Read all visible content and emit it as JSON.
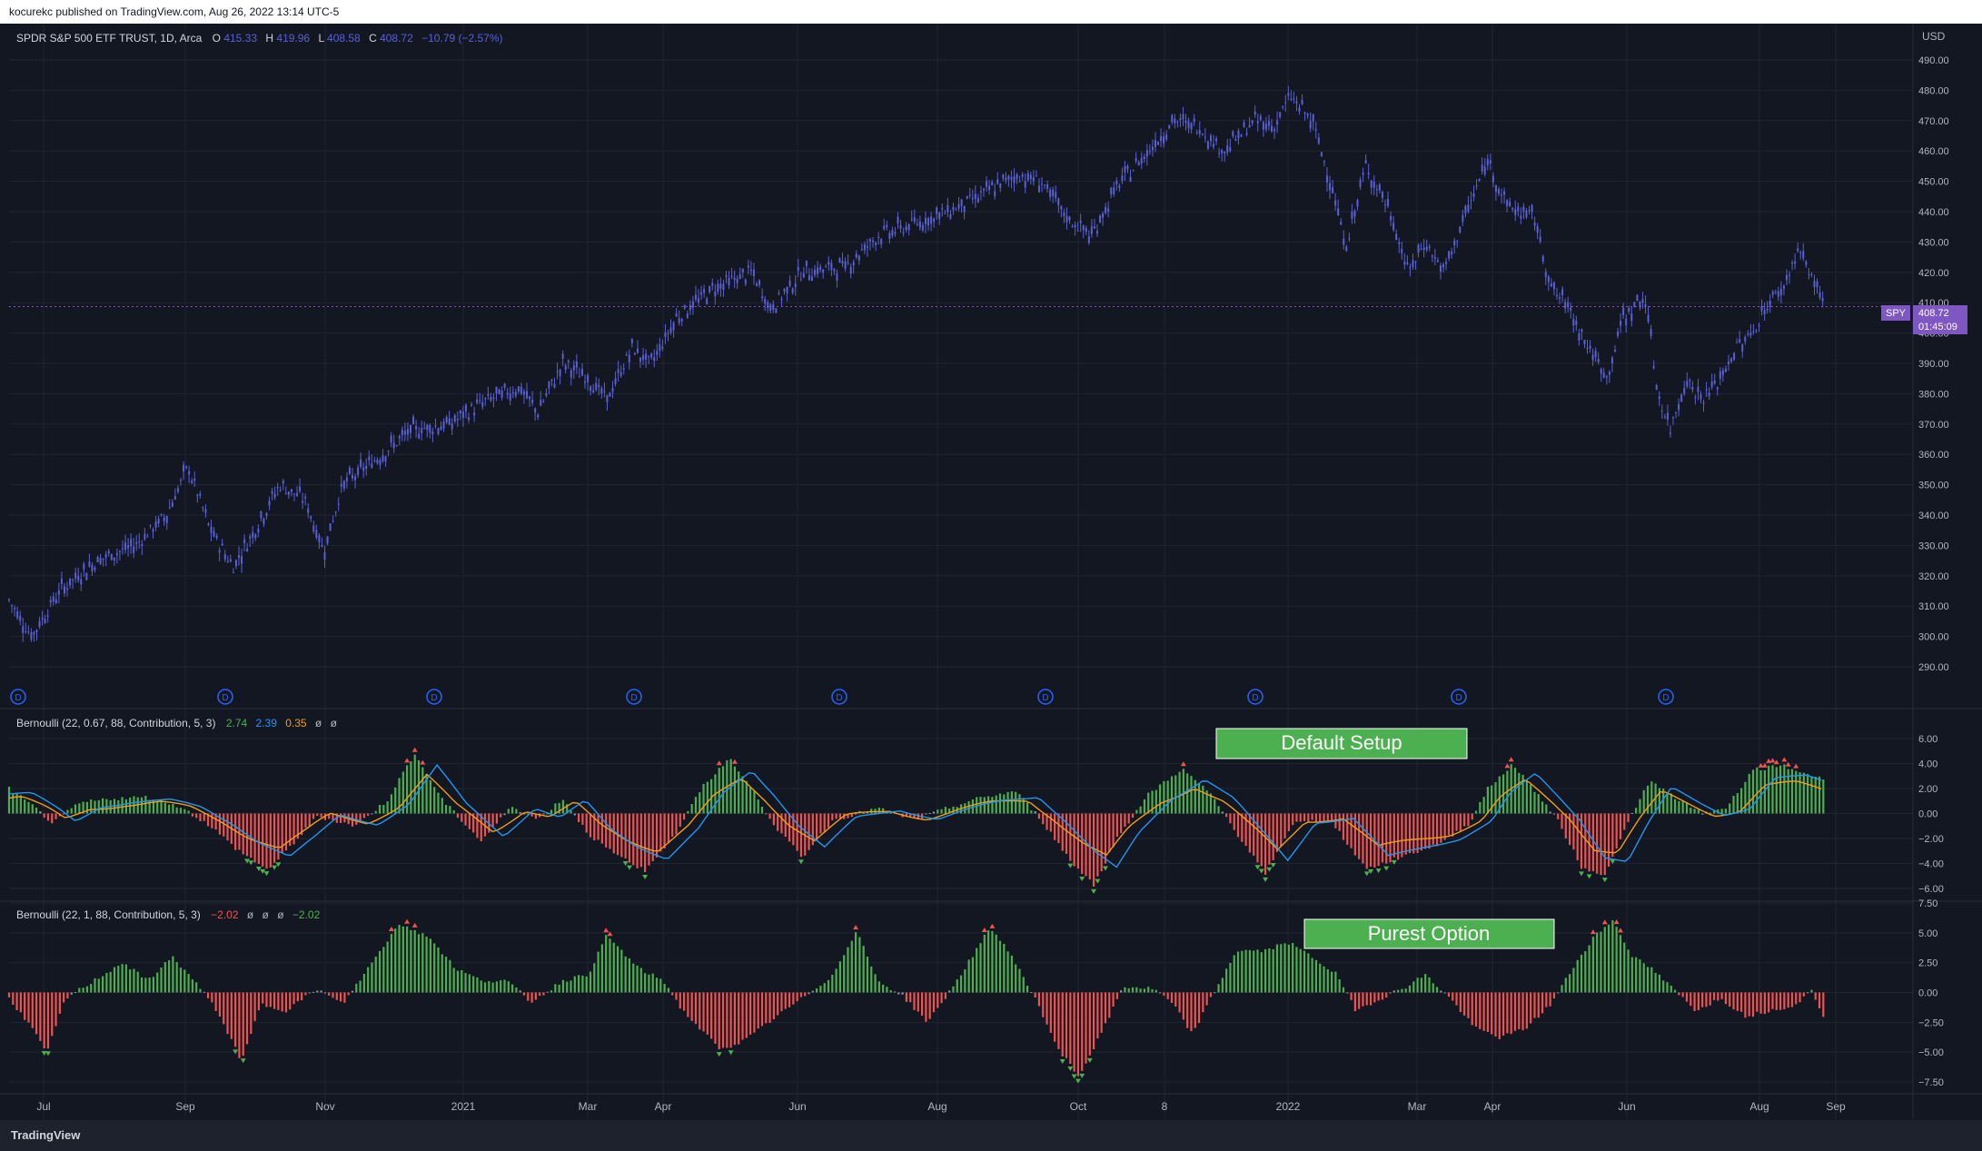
{
  "header": {
    "published_text": "kocurekc published on TradingView.com, Aug 26, 2022 13:14 UTC-5"
  },
  "footer": {
    "brand": "TradingView"
  },
  "colors": {
    "bg": "#131722",
    "candle": "#5b5fd6",
    "green": "#4caf50",
    "red": "#ef5350",
    "orange": "#f39c12",
    "blue": "#2196f3",
    "label_bg": "#4caf50",
    "price_tag": "#7e57c2"
  },
  "main_pane": {
    "symbol_info": "SPDR S&P 500 ETF TRUST, 1D, Arca",
    "ohlc": [
      {
        "k": "O",
        "v": "415.33"
      },
      {
        "k": "H",
        "v": "419.96"
      },
      {
        "k": "L",
        "v": "408.58"
      },
      {
        "k": "C",
        "v": "408.72"
      }
    ],
    "change": "−10.79 (−2.57%)",
    "currency": "USD",
    "last_price": "408.72",
    "countdown": "01:45:09",
    "symbol_tag": "SPY",
    "dividend_marker": "D"
  },
  "pane1": {
    "title": "Bernoulli (22, 0.67, 88, Contribution, 5, 3)",
    "values": [
      {
        "v": "2.74",
        "color": "#4caf50"
      },
      {
        "v": "2.39",
        "color": "#2196f3"
      },
      {
        "v": "0.35",
        "color": "#f39c12"
      },
      {
        "v": "ø",
        "color": "#b2b5be"
      },
      {
        "v": "ø",
        "color": "#b2b5be"
      }
    ],
    "annotation": "Default Setup"
  },
  "pane2": {
    "title": "Bernoulli (22, 1, 88, Contribution, 5, 3)",
    "values": [
      {
        "v": "−2.02",
        "color": "#ef5350"
      },
      {
        "v": "ø",
        "color": "#b2b5be"
      },
      {
        "v": "ø",
        "color": "#b2b5be"
      },
      {
        "v": "ø",
        "color": "#b2b5be"
      },
      {
        "v": "−2.02",
        "color": "#4caf50"
      }
    ],
    "annotation": "Purest Option"
  },
  "chart_data": [
    {
      "type": "candlestick",
      "title": "SPDR S&P 500 ETF TRUST, 1D, Arca",
      "ylim": [
        285,
        495
      ],
      "y_ticks": [
        "490.00",
        "480.00",
        "470.00",
        "460.00",
        "450.00",
        "440.00",
        "430.00",
        "420.00",
        "410.00",
        "400.00",
        "390.00",
        "380.00",
        "370.00",
        "360.00",
        "350.00",
        "340.00",
        "330.00",
        "320.00",
        "310.00",
        "300.00",
        "290.00"
      ],
      "x_ticks": [
        "Jul",
        "Sep",
        "Nov",
        "2021",
        "Mar",
        "Apr",
        "Jun",
        "Aug",
        "Oct",
        "8",
        "2022",
        "Mar",
        "Apr",
        "Jun",
        "Aug",
        "Sep"
      ],
      "close_path": [
        {
          "t": 0,
          "y": 312
        },
        {
          "t": 18,
          "y": 300
        },
        {
          "t": 40,
          "y": 315
        },
        {
          "t": 70,
          "y": 325
        },
        {
          "t": 100,
          "y": 330
        },
        {
          "t": 125,
          "y": 340
        },
        {
          "t": 142,
          "y": 356
        },
        {
          "t": 160,
          "y": 335
        },
        {
          "t": 178,
          "y": 323
        },
        {
          "t": 195,
          "y": 335
        },
        {
          "t": 215,
          "y": 350
        },
        {
          "t": 235,
          "y": 345
        },
        {
          "t": 250,
          "y": 328
        },
        {
          "t": 265,
          "y": 350
        },
        {
          "t": 290,
          "y": 358
        },
        {
          "t": 320,
          "y": 368
        },
        {
          "t": 350,
          "y": 370
        },
        {
          "t": 380,
          "y": 378
        },
        {
          "t": 405,
          "y": 382
        },
        {
          "t": 420,
          "y": 374
        },
        {
          "t": 440,
          "y": 390
        },
        {
          "t": 460,
          "y": 385
        },
        {
          "t": 475,
          "y": 378
        },
        {
          "t": 495,
          "y": 395
        },
        {
          "t": 510,
          "y": 390
        },
        {
          "t": 530,
          "y": 405
        },
        {
          "t": 560,
          "y": 415
        },
        {
          "t": 590,
          "y": 420
        },
        {
          "t": 605,
          "y": 408
        },
        {
          "t": 630,
          "y": 420
        },
        {
          "t": 665,
          "y": 422
        },
        {
          "t": 690,
          "y": 432
        },
        {
          "t": 720,
          "y": 436
        },
        {
          "t": 745,
          "y": 440
        },
        {
          "t": 770,
          "y": 445
        },
        {
          "t": 800,
          "y": 452
        },
        {
          "t": 820,
          "y": 450
        },
        {
          "t": 840,
          "y": 438
        },
        {
          "t": 860,
          "y": 432
        },
        {
          "t": 880,
          "y": 448
        },
        {
          "t": 905,
          "y": 460
        },
        {
          "t": 925,
          "y": 470
        },
        {
          "t": 945,
          "y": 468
        },
        {
          "t": 965,
          "y": 460
        },
        {
          "t": 990,
          "y": 470
        },
        {
          "t": 1005,
          "y": 468
        },
        {
          "t": 1018,
          "y": 478
        },
        {
          "t": 1035,
          "y": 470
        },
        {
          "t": 1050,
          "y": 450
        },
        {
          "t": 1062,
          "y": 428
        },
        {
          "t": 1078,
          "y": 455
        },
        {
          "t": 1095,
          "y": 442
        },
        {
          "t": 1112,
          "y": 420
        },
        {
          "t": 1125,
          "y": 430
        },
        {
          "t": 1140,
          "y": 420
        },
        {
          "t": 1158,
          "y": 440
        },
        {
          "t": 1175,
          "y": 457
        },
        {
          "t": 1190,
          "y": 442
        },
        {
          "t": 1212,
          "y": 438
        },
        {
          "t": 1225,
          "y": 415
        },
        {
          "t": 1240,
          "y": 408
        },
        {
          "t": 1255,
          "y": 395
        },
        {
          "t": 1270,
          "y": 385
        },
        {
          "t": 1282,
          "y": 405
        },
        {
          "t": 1300,
          "y": 412
        },
        {
          "t": 1310,
          "y": 380
        },
        {
          "t": 1320,
          "y": 368
        },
        {
          "t": 1332,
          "y": 385
        },
        {
          "t": 1345,
          "y": 378
        },
        {
          "t": 1360,
          "y": 385
        },
        {
          "t": 1372,
          "y": 395
        },
        {
          "t": 1385,
          "y": 400
        },
        {
          "t": 1398,
          "y": 410
        },
        {
          "t": 1410,
          "y": 415
        },
        {
          "t": 1422,
          "y": 428
        },
        {
          "t": 1430,
          "y": 420
        },
        {
          "t": 1437,
          "y": 415
        },
        {
          "t": 1442,
          "y": 409
        }
      ]
    },
    {
      "type": "bar",
      "title": "Bernoulli (22, 0.67, 88, Contribution, 5, 3)",
      "ylim": [
        -6.5,
        6.2
      ],
      "y_ticks": [
        "6.00",
        "4.00",
        "2.00",
        "0.00",
        "−2.00",
        "−4.00",
        "−6.00"
      ],
      "histogram_path": [
        {
          "t": 0,
          "v": 2.0
        },
        {
          "t": 20,
          "v": 0.5
        },
        {
          "t": 35,
          "v": -0.8
        },
        {
          "t": 55,
          "v": 0.8
        },
        {
          "t": 80,
          "v": 1.2
        },
        {
          "t": 110,
          "v": 1.3
        },
        {
          "t": 135,
          "v": 0.6
        },
        {
          "t": 160,
          "v": -1.0
        },
        {
          "t": 180,
          "v": -2.8
        },
        {
          "t": 205,
          "v": -4.5
        },
        {
          "t": 225,
          "v": -2.5
        },
        {
          "t": 245,
          "v": -0.2
        },
        {
          "t": 275,
          "v": -1.0
        },
        {
          "t": 300,
          "v": 1.0
        },
        {
          "t": 322,
          "v": 4.8
        },
        {
          "t": 345,
          "v": 1.0
        },
        {
          "t": 375,
          "v": -2.2
        },
        {
          "t": 400,
          "v": 0.6
        },
        {
          "t": 420,
          "v": -0.5
        },
        {
          "t": 440,
          "v": 1.2
        },
        {
          "t": 460,
          "v": -1.6
        },
        {
          "t": 480,
          "v": -3.2
        },
        {
          "t": 505,
          "v": -4.6
        },
        {
          "t": 530,
          "v": -1.6
        },
        {
          "t": 550,
          "v": 2.0
        },
        {
          "t": 572,
          "v": 4.4
        },
        {
          "t": 590,
          "v": 2.0
        },
        {
          "t": 610,
          "v": -1.2
        },
        {
          "t": 630,
          "v": -3.5
        },
        {
          "t": 655,
          "v": -0.5
        },
        {
          "t": 690,
          "v": 0.4
        },
        {
          "t": 720,
          "v": -0.5
        },
        {
          "t": 745,
          "v": 0.4
        },
        {
          "t": 770,
          "v": 1.2
        },
        {
          "t": 800,
          "v": 1.8
        },
        {
          "t": 820,
          "v": -0.5
        },
        {
          "t": 845,
          "v": -4.0
        },
        {
          "t": 862,
          "v": -5.7
        },
        {
          "t": 880,
          "v": -2.0
        },
        {
          "t": 905,
          "v": 1.5
        },
        {
          "t": 932,
          "v": 3.6
        },
        {
          "t": 955,
          "v": 1.5
        },
        {
          "t": 975,
          "v": -1.5
        },
        {
          "t": 998,
          "v": -4.8
        },
        {
          "t": 1020,
          "v": -0.8
        },
        {
          "t": 1050,
          "v": -0.5
        },
        {
          "t": 1078,
          "v": -4.5
        },
        {
          "t": 1105,
          "v": -3.5
        },
        {
          "t": 1135,
          "v": -2.5
        },
        {
          "t": 1160,
          "v": -0.8
        },
        {
          "t": 1175,
          "v": 2.0
        },
        {
          "t": 1195,
          "v": 4.0
        },
        {
          "t": 1215,
          "v": 1.5
        },
        {
          "t": 1230,
          "v": -0.5
        },
        {
          "t": 1250,
          "v": -4.4
        },
        {
          "t": 1268,
          "v": -5.0
        },
        {
          "t": 1285,
          "v": -1.0
        },
        {
          "t": 1303,
          "v": 2.6
        },
        {
          "t": 1325,
          "v": 1.2
        },
        {
          "t": 1345,
          "v": 0.0
        },
        {
          "t": 1365,
          "v": 0.5
        },
        {
          "t": 1385,
          "v": 3.5
        },
        {
          "t": 1410,
          "v": 3.8
        },
        {
          "t": 1442,
          "v": 2.74
        }
      ]
    },
    {
      "type": "bar",
      "title": "Bernoulli (22, 1, 88, Contribution, 5, 3)",
      "ylim": [
        -8.8,
        7.7
      ],
      "y_ticks": [
        "7.50",
        "5.00",
        "2.50",
        "0.00",
        "−2.50",
        "−5.00",
        "−7.50"
      ],
      "histogram_path": [
        {
          "t": 0,
          "v": -0.5
        },
        {
          "t": 15,
          "v": -2.5
        },
        {
          "t": 30,
          "v": -5.0
        },
        {
          "t": 45,
          "v": -0.5
        },
        {
          "t": 60,
          "v": 0.5
        },
        {
          "t": 90,
          "v": 2.5
        },
        {
          "t": 110,
          "v": 1.0
        },
        {
          "t": 130,
          "v": 3.0
        },
        {
          "t": 150,
          "v": 0.6
        },
        {
          "t": 165,
          "v": -1.5
        },
        {
          "t": 185,
          "v": -5.8
        },
        {
          "t": 200,
          "v": -1.0
        },
        {
          "t": 220,
          "v": -1.5
        },
        {
          "t": 245,
          "v": 0.3
        },
        {
          "t": 265,
          "v": -1.0
        },
        {
          "t": 285,
          "v": 2.0
        },
        {
          "t": 310,
          "v": 5.8
        },
        {
          "t": 335,
          "v": 4.5
        },
        {
          "t": 355,
          "v": 2.0
        },
        {
          "t": 375,
          "v": 1.0
        },
        {
          "t": 395,
          "v": 1.0
        },
        {
          "t": 415,
          "v": -0.8
        },
        {
          "t": 440,
          "v": 1.0
        },
        {
          "t": 460,
          "v": 1.5
        },
        {
          "t": 475,
          "v": 4.8
        },
        {
          "t": 500,
          "v": 2.0
        },
        {
          "t": 520,
          "v": 1.0
        },
        {
          "t": 535,
          "v": -1.5
        },
        {
          "t": 565,
          "v": -4.8
        },
        {
          "t": 585,
          "v": -4.0
        },
        {
          "t": 610,
          "v": -2.0
        },
        {
          "t": 630,
          "v": -0.5
        },
        {
          "t": 655,
          "v": 1.5
        },
        {
          "t": 673,
          "v": 5.2
        },
        {
          "t": 690,
          "v": 1.0
        },
        {
          "t": 710,
          "v": -0.3
        },
        {
          "t": 730,
          "v": -2.5
        },
        {
          "t": 750,
          "v": 0.5
        },
        {
          "t": 765,
          "v": 3.0
        },
        {
          "t": 780,
          "v": 5.5
        },
        {
          "t": 800,
          "v": 2.5
        },
        {
          "t": 815,
          "v": -0.5
        },
        {
          "t": 835,
          "v": -5.0
        },
        {
          "t": 850,
          "v": -7.0
        },
        {
          "t": 870,
          "v": -3.0
        },
        {
          "t": 885,
          "v": 0.5
        },
        {
          "t": 910,
          "v": 0.3
        },
        {
          "t": 925,
          "v": -1.0
        },
        {
          "t": 940,
          "v": -3.5
        },
        {
          "t": 955,
          "v": -0.5
        },
        {
          "t": 975,
          "v": 3.5
        },
        {
          "t": 1000,
          "v": 3.5
        },
        {
          "t": 1015,
          "v": 4.3
        },
        {
          "t": 1035,
          "v": 3.0
        },
        {
          "t": 1055,
          "v": 1.5
        },
        {
          "t": 1070,
          "v": -1.5
        },
        {
          "t": 1090,
          "v": -0.5
        },
        {
          "t": 1110,
          "v": 0.5
        },
        {
          "t": 1125,
          "v": 1.5
        },
        {
          "t": 1145,
          "v": -0.5
        },
        {
          "t": 1165,
          "v": -3.0
        },
        {
          "t": 1185,
          "v": -3.8
        },
        {
          "t": 1205,
          "v": -3.0
        },
        {
          "t": 1225,
          "v": -1.0
        },
        {
          "t": 1245,
          "v": 2.5
        },
        {
          "t": 1260,
          "v": 4.8
        },
        {
          "t": 1275,
          "v": 6.0
        },
        {
          "t": 1290,
          "v": 3.0
        },
        {
          "t": 1305,
          "v": 2.0
        },
        {
          "t": 1320,
          "v": 0.5
        },
        {
          "t": 1340,
          "v": -1.5
        },
        {
          "t": 1360,
          "v": -0.5
        },
        {
          "t": 1380,
          "v": -2.0
        },
        {
          "t": 1400,
          "v": -1.5
        },
        {
          "t": 1420,
          "v": -1.0
        },
        {
          "t": 1432,
          "v": 0.2
        },
        {
          "t": 1442,
          "v": -2.02
        }
      ]
    }
  ]
}
